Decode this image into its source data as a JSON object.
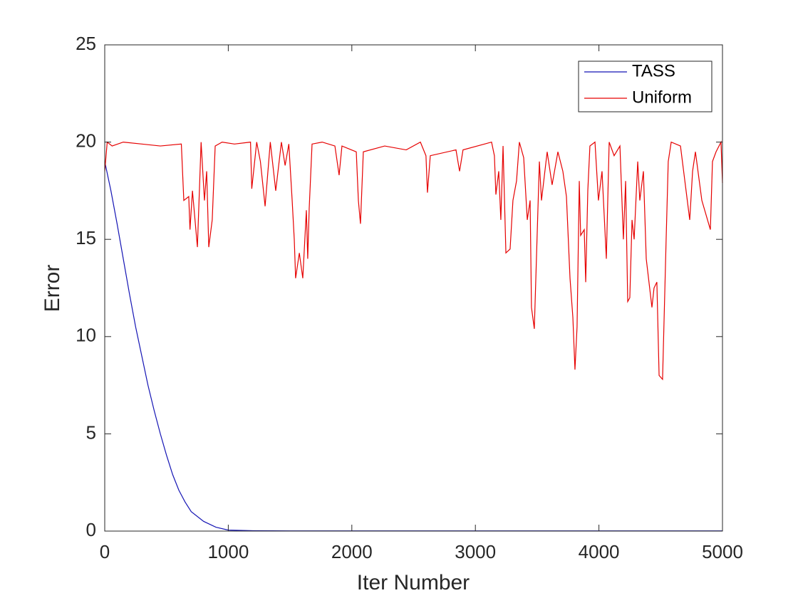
{
  "chart_data": {
    "type": "line",
    "xlabel": "Iter Number",
    "ylabel": "Error",
    "xlim": [
      0,
      5000
    ],
    "ylim": [
      0,
      25
    ],
    "xticks": [
      0,
      1000,
      2000,
      3000,
      4000,
      5000
    ],
    "yticks": [
      0,
      5,
      10,
      15,
      20,
      25
    ],
    "legend": "top-right",
    "series": [
      {
        "name": "TASS",
        "color": "#1414b4",
        "x": [
          0,
          50,
          100,
          150,
          200,
          250,
          300,
          350,
          400,
          450,
          500,
          550,
          600,
          650,
          700,
          800,
          900,
          1000,
          1200,
          1500,
          2000,
          2500,
          3000,
          3500,
          4000,
          4500,
          5000
        ],
        "values": [
          19,
          17.5,
          15.8,
          14,
          12.2,
          10.5,
          9,
          7.5,
          6.2,
          5,
          3.9,
          2.9,
          2.1,
          1.5,
          1,
          0.5,
          0.2,
          0.05,
          0.02,
          0.01,
          0.01,
          0.01,
          0.01,
          0.01,
          0.01,
          0.01,
          0.01
        ]
      },
      {
        "name": "Uniform",
        "color": "#e60000",
        "x": [
          0,
          20,
          60,
          150,
          300,
          450,
          620,
          640,
          680,
          690,
          710,
          750,
          780,
          807,
          825,
          842,
          870,
          894,
          950,
          1050,
          1180,
          1190,
          1230,
          1260,
          1298,
          1340,
          1384,
          1430,
          1460,
          1490,
          1517,
          1534,
          1545,
          1575,
          1603,
          1632,
          1643,
          1655,
          1678,
          1760,
          1863,
          1897,
          1920,
          2036,
          2053,
          2070,
          2093,
          2266,
          2440,
          2555,
          2600,
          2612,
          2635,
          2843,
          2872,
          2900,
          3074,
          3131,
          3154,
          3166,
          3189,
          3206,
          3224,
          3247,
          3281,
          3304,
          3333,
          3356,
          3391,
          3420,
          3443,
          3454,
          3477,
          3518,
          3535,
          3581,
          3621,
          3668,
          3708,
          3737,
          3766,
          3789,
          3806,
          3823,
          3841,
          3852,
          3881,
          3893,
          3910,
          3927,
          3968,
          3996,
          4025,
          4060,
          4083,
          4123,
          4170,
          4198,
          4216,
          4233,
          4250,
          4268,
          4285,
          4314,
          4331,
          4360,
          4383,
          4429,
          4446,
          4469,
          4487,
          4515,
          4544,
          4561,
          4585,
          4660,
          4735,
          4758,
          4781,
          4833,
          4902,
          4919,
          4948,
          4988,
          5000
        ],
        "values": [
          18.5,
          20,
          19.8,
          20,
          19.9,
          19.8,
          19.9,
          17,
          17.2,
          15.5,
          17.5,
          14.6,
          20,
          17,
          18.5,
          14.6,
          16,
          19.8,
          20,
          19.9,
          20,
          17.6,
          20,
          19,
          16.7,
          20,
          17.5,
          20,
          18.8,
          19.9,
          17,
          15,
          13,
          14.3,
          13,
          16.5,
          14,
          16.6,
          19.9,
          20,
          19.8,
          18.3,
          19.8,
          19.5,
          17,
          15.8,
          19.5,
          19.8,
          19.6,
          20,
          19.3,
          17.4,
          19.3,
          19.6,
          18.5,
          19.6,
          19.9,
          20,
          19.3,
          17.3,
          18.5,
          16,
          19.8,
          14.3,
          14.5,
          17,
          18,
          20,
          19.2,
          16,
          17,
          11.5,
          10.4,
          19,
          17,
          19.5,
          17.8,
          19.5,
          18.5,
          17.2,
          13,
          11,
          8.3,
          10.5,
          18,
          15.2,
          15.5,
          12.8,
          17.5,
          19.8,
          20,
          17,
          18.5,
          14,
          20,
          19.3,
          19.8,
          15,
          18,
          11.8,
          12,
          16,
          15,
          19,
          17,
          18.5,
          14,
          11.5,
          12.5,
          12.8,
          8,
          7.8,
          15,
          19,
          20,
          19.8,
          16,
          18.5,
          19.5,
          17,
          15.5,
          19,
          19.5,
          20,
          17.9
        ]
      }
    ]
  }
}
